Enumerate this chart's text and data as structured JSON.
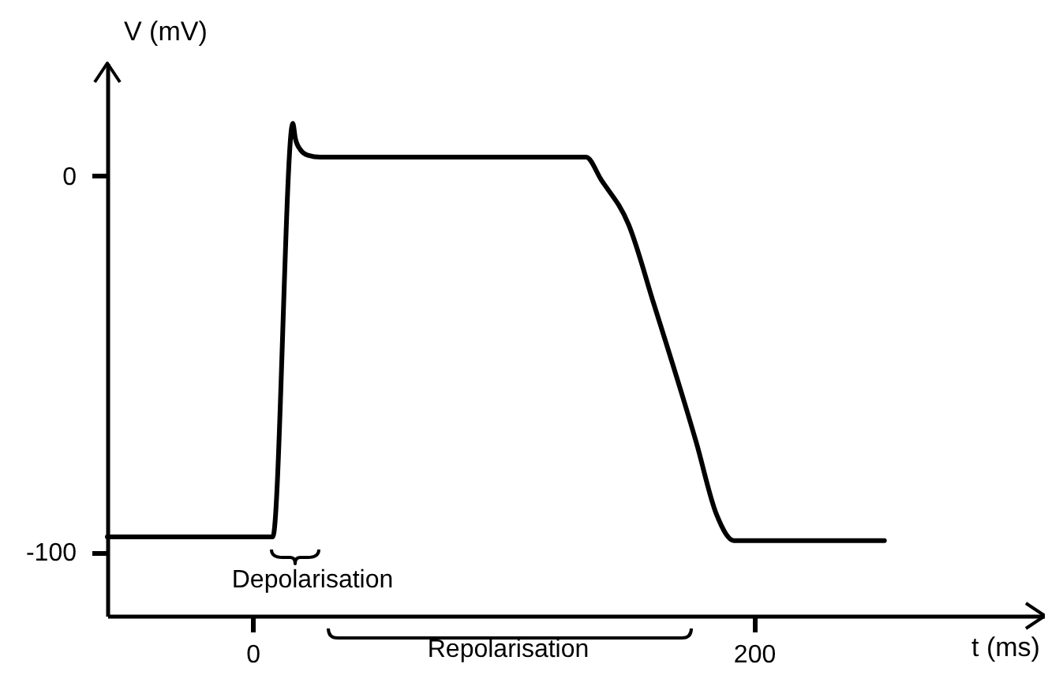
{
  "chart_data": {
    "type": "line",
    "xlabel": "t (ms)",
    "ylabel": "V (mV)",
    "x": [
      -58,
      8,
      16,
      17,
      19,
      22,
      27,
      133,
      139,
      150,
      160,
      177,
      185,
      192,
      252
    ],
    "series": [
      {
        "color": "#000000",
        "values": [
          -96,
          -96,
          14,
          10,
          7,
          5.5,
          5,
          5,
          -1,
          -13,
          -34,
          -71,
          -90,
          -97,
          -97
        ]
      }
    ],
    "xlim": [
      -58,
      316
    ],
    "ylim": [
      -117,
      30
    ],
    "xticks": [
      0,
      200
    ],
    "yticks": [
      -100,
      0
    ],
    "grid": false,
    "marker": "none",
    "line_style": "solid",
    "annotations": [
      "Depolarisation",
      "Repolarisation"
    ]
  }
}
